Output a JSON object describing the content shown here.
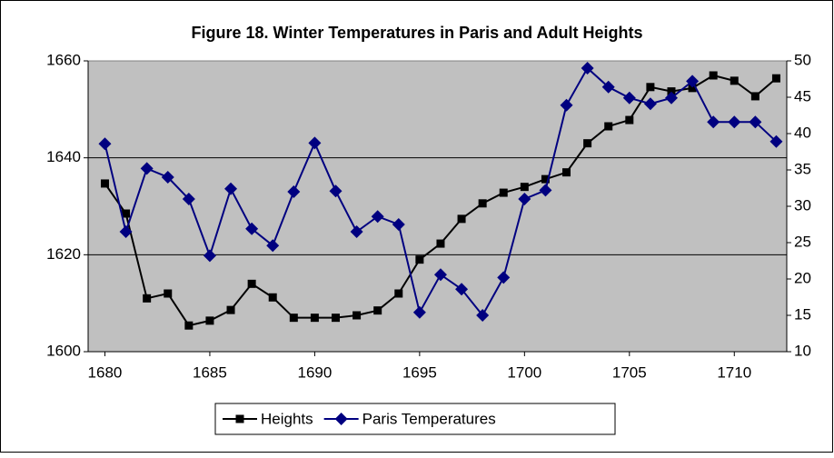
{
  "chart_data": {
    "type": "line",
    "title": "Figure 18. Winter Temperatures in Paris and Adult Heights",
    "x": [
      1680,
      1681,
      1682,
      1683,
      1684,
      1685,
      1686,
      1687,
      1688,
      1689,
      1690,
      1691,
      1692,
      1693,
      1694,
      1695,
      1696,
      1697,
      1698,
      1699,
      1700,
      1701,
      1702,
      1703,
      1704,
      1705,
      1706,
      1707,
      1708,
      1709,
      1710,
      1711,
      1712
    ],
    "xlim": [
      1679.2,
      1712.5
    ],
    "xticks": [
      1680,
      1685,
      1690,
      1695,
      1700,
      1705,
      1710
    ],
    "ylim": [
      1600,
      1660
    ],
    "yticks": [
      1600,
      1620,
      1640,
      1660
    ],
    "y2lim": [
      10,
      50
    ],
    "y2ticks": [
      10,
      15,
      20,
      25,
      30,
      35,
      40,
      45,
      50
    ],
    "grid": true,
    "legend": "bottom",
    "series": [
      {
        "name": "Heights",
        "color": "#000000",
        "marker": "square",
        "values": [
          1634.7,
          1628.5,
          1611,
          1612,
          1605.4,
          1606.4,
          1608.6,
          1614,
          1611.2,
          1607,
          1607,
          1607,
          1607.5,
          1608.5,
          1612,
          1619,
          1622.3,
          1627.4,
          1630.6,
          1632.8,
          1634,
          1635.6,
          1637,
          1643,
          1646.5,
          1647.8,
          1654.6,
          1653.7,
          1654.4,
          1657,
          1655.9,
          1652.7,
          1656.4
        ]
      },
      {
        "name": "Paris Temperatures",
        "color": "#000080",
        "marker": "diamond",
        "axis": "y2",
        "values": [
          38.6,
          26.5,
          35.2,
          34,
          31,
          23.2,
          32.4,
          26.9,
          24.6,
          32,
          38.7,
          32.1,
          26.5,
          28.6,
          27.5,
          15.4,
          20.6,
          18.6,
          15,
          20.2,
          31,
          32.2,
          43.9,
          49,
          46.4,
          44.9,
          44.1,
          44.9,
          47.2,
          41.6,
          41.6,
          41.6,
          38.9
        ]
      }
    ]
  }
}
